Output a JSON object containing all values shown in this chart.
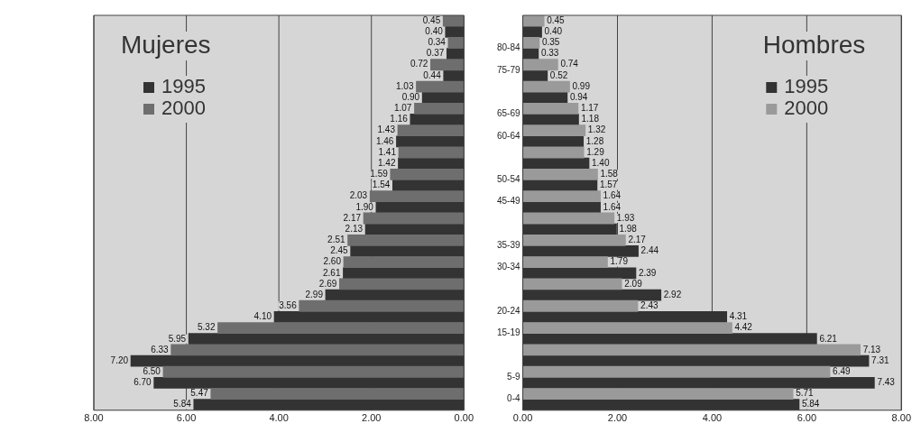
{
  "chart_data": [
    {
      "type": "bar",
      "orientation": "horizontal",
      "title": "Mujeres",
      "categories": [
        null,
        null,
        null,
        null,
        null,
        null,
        null,
        null,
        null,
        null,
        null,
        null,
        null,
        null,
        null,
        null,
        null,
        null
      ],
      "series": [
        {
          "name": "1995",
          "color": "#333333",
          "values": [
            0.4,
            0.37,
            0.44,
            0.9,
            1.16,
            1.46,
            1.42,
            1.54,
            1.9,
            2.13,
            2.45,
            2.61,
            2.99,
            4.1,
            5.95,
            7.2,
            6.7,
            5.84
          ],
          "value_labels": [
            "0.40",
            "0.37",
            "0.44",
            "0.90",
            "1.16",
            "1.46",
            "1.42",
            "1.54",
            "1.90",
            "2.13",
            "2.45",
            "2.61",
            "2.99",
            "4.10",
            "5.95",
            "7.20",
            "6.70",
            "5.84"
          ]
        },
        {
          "name": "2000",
          "color": "#6e6e6e",
          "values": [
            0.45,
            0.34,
            0.72,
            1.03,
            1.07,
            1.43,
            1.41,
            1.59,
            2.03,
            2.17,
            2.51,
            2.6,
            2.69,
            3.56,
            5.32,
            6.33,
            6.5,
            5.47
          ],
          "value_labels": [
            "0.45",
            "0.34",
            "0.72",
            "1.03",
            "1.07",
            "1.43",
            "1.41",
            "1.59",
            "2.03",
            "2.17",
            "2.51",
            "2.60",
            "2.69",
            "3.56",
            "5.32",
            "6.33",
            "6.50",
            "5.47"
          ]
        }
      ],
      "xlim": [
        8,
        0
      ],
      "xticks": [
        {
          "value": 8,
          "label": "8.00"
        },
        {
          "value": 6,
          "label": "6.00"
        },
        {
          "value": 4,
          "label": "4.00"
        },
        {
          "value": 2,
          "label": "2.00"
        },
        {
          "value": 0,
          "label": "0.00"
        }
      ],
      "grid": "x",
      "legend": "top left"
    },
    {
      "type": "bar",
      "orientation": "horizontal",
      "title": "Hombres",
      "categories": [
        null,
        "80-84",
        "75-79",
        null,
        "65-69",
        "60-64",
        null,
        "50-54",
        "45-49",
        null,
        "35-39",
        "30-34",
        null,
        "20-24",
        "15-19",
        null,
        "5-9",
        "0-4"
      ],
      "series": [
        {
          "name": "1995",
          "color": "#333333",
          "values": [
            0.4,
            0.33,
            0.52,
            0.94,
            1.18,
            1.28,
            1.4,
            1.57,
            1.64,
            1.98,
            2.44,
            2.39,
            2.92,
            4.31,
            6.21,
            7.31,
            7.43,
            5.84
          ],
          "value_labels": [
            "0.40",
            "0.33",
            "0.52",
            "0.94",
            "1.18",
            "1.28",
            "1.40",
            "1.57",
            "1.64",
            "1.98",
            "2.44",
            "2.39",
            "2.92",
            "4.31",
            "6.21",
            "7.31",
            "7.43",
            "5.84"
          ]
        },
        {
          "name": "2000",
          "color": "#9a9a9a",
          "values": [
            0.45,
            0.35,
            0.74,
            0.99,
            1.17,
            1.32,
            1.29,
            1.58,
            1.64,
            1.93,
            2.17,
            1.79,
            2.09,
            2.43,
            4.42,
            7.13,
            6.49,
            5.71
          ],
          "value_labels": [
            "0.45",
            "0.35",
            "0.74",
            "0.99",
            "1.17",
            "1.32",
            "1.29",
            "1.58",
            "1.64",
            "1.93",
            "2.17",
            "1.79",
            "2.09",
            "2.43",
            "4.42",
            "7.13",
            "6.49",
            "5.71"
          ]
        }
      ],
      "xlim": [
        0,
        8
      ],
      "xticks": [
        {
          "value": 0,
          "label": "0.00"
        },
        {
          "value": 2,
          "label": "2.00"
        },
        {
          "value": 4,
          "label": "4.00"
        },
        {
          "value": 6,
          "label": "6.00"
        },
        {
          "value": 8,
          "label": "8.00"
        }
      ],
      "grid": "x",
      "legend": "top right"
    }
  ]
}
